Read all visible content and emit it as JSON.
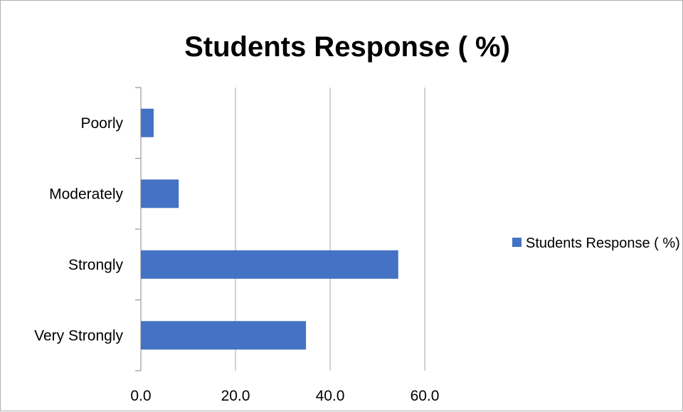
{
  "chart_data": {
    "type": "bar",
    "orientation": "horizontal",
    "title": "Students Response  ( %)",
    "categories": [
      "Poorly",
      "Moderately",
      "Strongly",
      "Very Strongly"
    ],
    "series": [
      {
        "name": "Students Response  ( %)",
        "values": [
          2.7,
          8.0,
          54.4,
          34.9
        ],
        "color": "#4472c4"
      }
    ],
    "xlim": [
      0,
      60
    ],
    "xticks": [
      "0.0",
      "20.0",
      "40.0",
      "60.0"
    ],
    "xtick_values": [
      0,
      20,
      40,
      60
    ],
    "grid": true,
    "legend_position": "right"
  }
}
